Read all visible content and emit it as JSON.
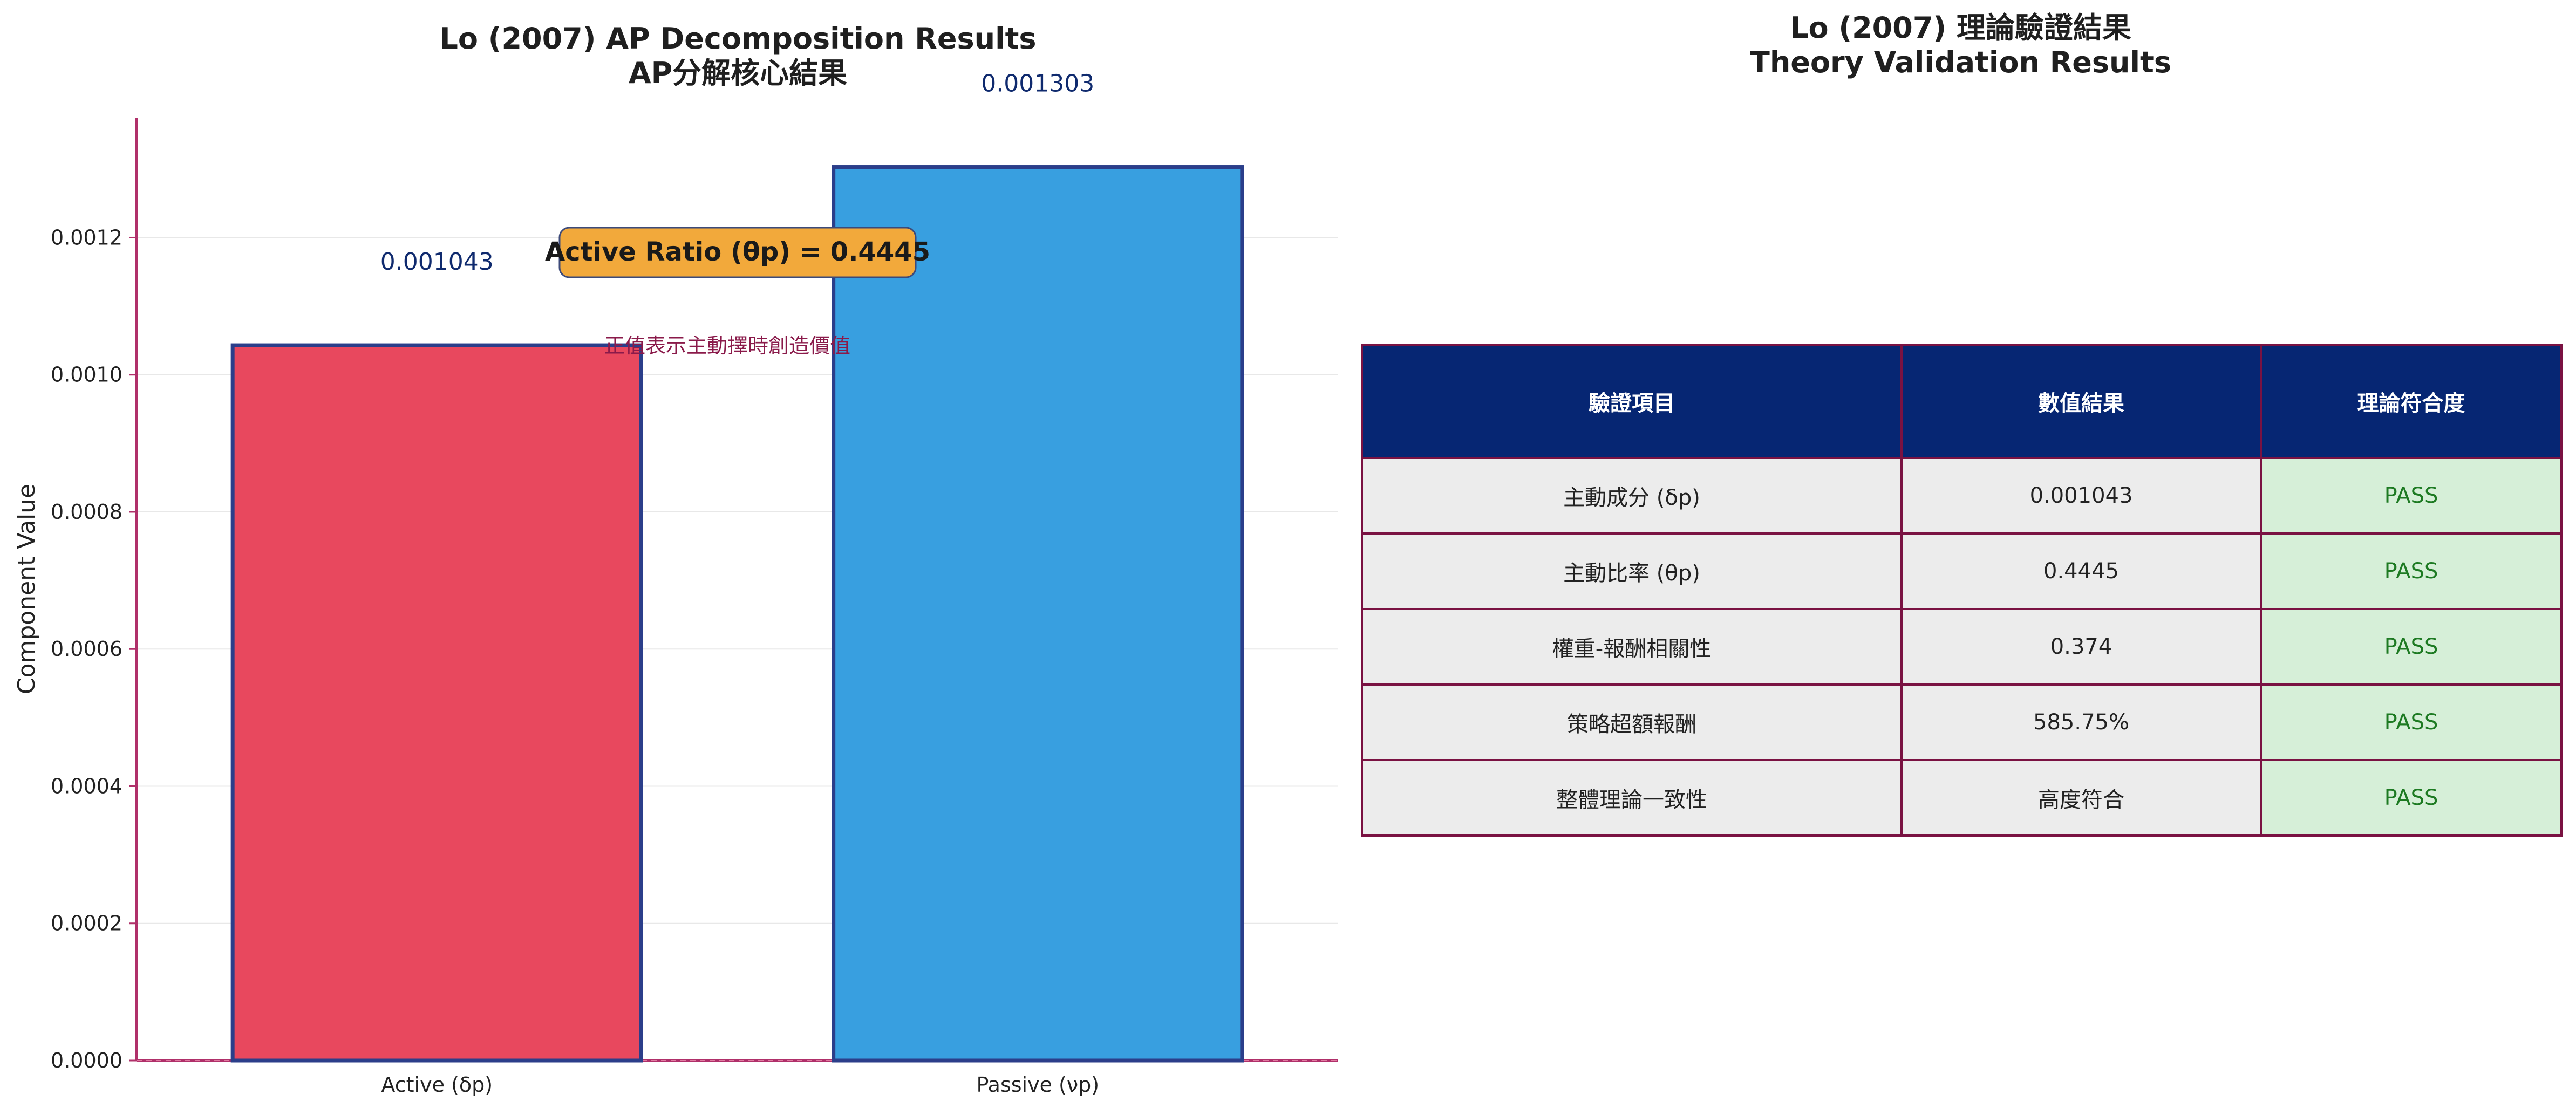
{
  "chart_data": {
    "type": "bar",
    "title": "Lo (2007) AP Decomposition Results",
    "subtitle": "AP分解核心結果",
    "ylabel": "Component Value",
    "xlabel": "",
    "categories": [
      "Active (δp)",
      "Passive (νp)"
    ],
    "values": [
      0.001043,
      0.001303
    ],
    "data_labels": [
      "0.001043",
      "0.001303"
    ],
    "colors": [
      "#e8485e",
      "#389fe0"
    ],
    "edge_color": "#2b3e8a",
    "ylim": [
      0,
      0.001375
    ],
    "yticks": [
      0.0,
      0.0002,
      0.0004,
      0.0006,
      0.0008,
      0.001,
      0.0012
    ],
    "ytick_labels": [
      "0.0000",
      "0.0002",
      "0.0004",
      "0.0006",
      "0.0008",
      "0.0010",
      "0.0012"
    ],
    "grid": true,
    "annotations": {
      "ratio_box": "Active Ratio (θp) = 0.4445",
      "note": "正值表示主動擇時創造價值"
    },
    "annotation_colors": {
      "ratio_box_fill": "#f2a93b",
      "note_text": "#8a1a4a",
      "label_text": "#0f2a6e",
      "axis_accent": "#b0306a"
    }
  },
  "table": {
    "title": "Lo (2007) 理論驗證結果",
    "subtitle": "Theory Validation Results",
    "headers": [
      "驗證項目",
      "數值結果",
      "理論符合度"
    ],
    "rows": [
      [
        "主動成分 (δp)",
        "0.001043",
        "PASS"
      ],
      [
        "主動比率 (θp)",
        "0.4445",
        "PASS"
      ],
      [
        "權重-報酬相關性",
        "0.374",
        "PASS"
      ],
      [
        "策略超額報酬",
        "585.75%",
        "PASS"
      ],
      [
        "整體理論一致性",
        "高度符合",
        "PASS"
      ]
    ],
    "colors": {
      "header_bg": "#062673",
      "border": "#7a1242",
      "cell_bg": "#ececec",
      "pass_bg": "#d6efd8",
      "pass_text": "#1d7a22"
    }
  }
}
